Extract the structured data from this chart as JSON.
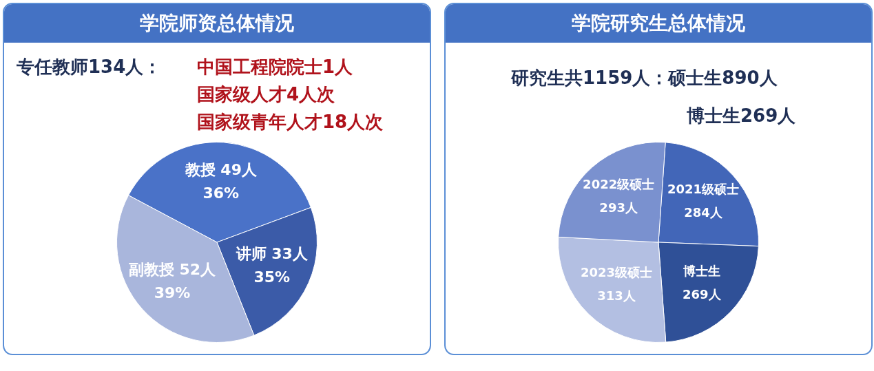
{
  "chart_data": [
    {
      "type": "pie",
      "title": "学院师资总体情况",
      "annotations": [
        "专任教师134人：",
        "中国工程院院士1人",
        "国家级人才4人次",
        "国家级青年人才18人次"
      ],
      "categories": [
        "教授",
        "讲师",
        "副教授"
      ],
      "values": [
        49,
        33,
        52
      ],
      "colors": [
        "#4a72c8",
        "#3b5ba8",
        "#a9b6dc"
      ],
      "value_labels": [
        "49人\n36%",
        "33人\n35%",
        "52人\n39%"
      ]
    },
    {
      "type": "pie",
      "title": "学院研究生总体情况",
      "annotations": [
        "研究生共1159人：硕士生890人",
        "博士生269人"
      ],
      "categories": [
        "2021级硕士",
        "博士生",
        "2023级硕士",
        "2022级硕士"
      ],
      "values": [
        284,
        269,
        313,
        293
      ],
      "colors": [
        "#4266b8",
        "#2f5097",
        "#b3bfe2",
        "#7a91cf"
      ],
      "value_labels": [
        "284人",
        "269人",
        "313人",
        "293人"
      ]
    }
  ]
}
